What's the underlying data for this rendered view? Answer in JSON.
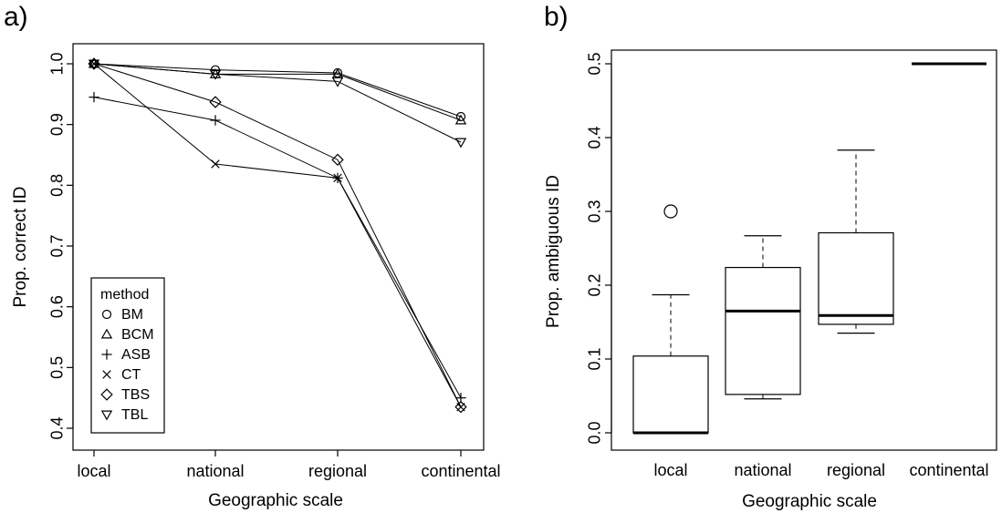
{
  "chart_data": [
    {
      "panel_label": "a)",
      "type": "line",
      "xlabel": "Geographic scale",
      "ylabel": "Prop. correct ID",
      "categories": [
        "local",
        "national",
        "regional",
        "continental"
      ],
      "ylim": [
        0.4,
        1.0
      ],
      "yticks": [
        0.4,
        0.5,
        0.6,
        0.7,
        0.8,
        0.9,
        1.0
      ],
      "ytick_labels": [
        "0.4",
        "0.5",
        "0.6",
        "0.7",
        "0.8",
        "0.9",
        "1.0"
      ],
      "legend": {
        "title": "method",
        "position": "bottom-left"
      },
      "series": [
        {
          "name": "BM",
          "marker": "circle",
          "values": [
            1.0,
            0.99,
            0.985,
            0.913
          ]
        },
        {
          "name": "BCM",
          "marker": "triangle-up",
          "values": [
            1.0,
            0.983,
            0.983,
            0.907
          ]
        },
        {
          "name": "ASB",
          "marker": "plus",
          "values": [
            0.945,
            0.907,
            0.812,
            0.45
          ]
        },
        {
          "name": "CT",
          "marker": "cross",
          "values": [
            1.0,
            0.835,
            0.812,
            0.435
          ]
        },
        {
          "name": "TBS",
          "marker": "diamond",
          "values": [
            1.0,
            0.937,
            0.842,
            0.435
          ]
        },
        {
          "name": "TBL",
          "marker": "triangle-down",
          "values": [
            1.0,
            0.983,
            0.971,
            0.871
          ]
        }
      ]
    },
    {
      "panel_label": "b)",
      "type": "box",
      "xlabel": "Geographic scale",
      "ylabel": "Prop. ambiguous ID",
      "categories": [
        "local",
        "national",
        "regional",
        "continental"
      ],
      "ylim": [
        0.0,
        0.5
      ],
      "yticks": [
        0.0,
        0.1,
        0.2,
        0.3,
        0.4,
        0.5
      ],
      "ytick_labels": [
        "0.0",
        "0.1",
        "0.2",
        "0.3",
        "0.4",
        "0.5"
      ],
      "boxes": [
        {
          "category": "local",
          "min": 0.0,
          "q1": 0.0,
          "median": 0.0,
          "q3": 0.104,
          "max": 0.187,
          "outliers": [
            0.3
          ]
        },
        {
          "category": "national",
          "min": 0.046,
          "q1": 0.052,
          "median": 0.165,
          "q3": 0.224,
          "max": 0.267,
          "outliers": []
        },
        {
          "category": "regional",
          "min": 0.135,
          "q1": 0.147,
          "median": 0.159,
          "q3": 0.271,
          "max": 0.383,
          "outliers": []
        },
        {
          "category": "continental",
          "min": 0.5,
          "q1": 0.5,
          "median": 0.5,
          "q3": 0.5,
          "max": 0.5,
          "outliers": []
        }
      ]
    }
  ]
}
